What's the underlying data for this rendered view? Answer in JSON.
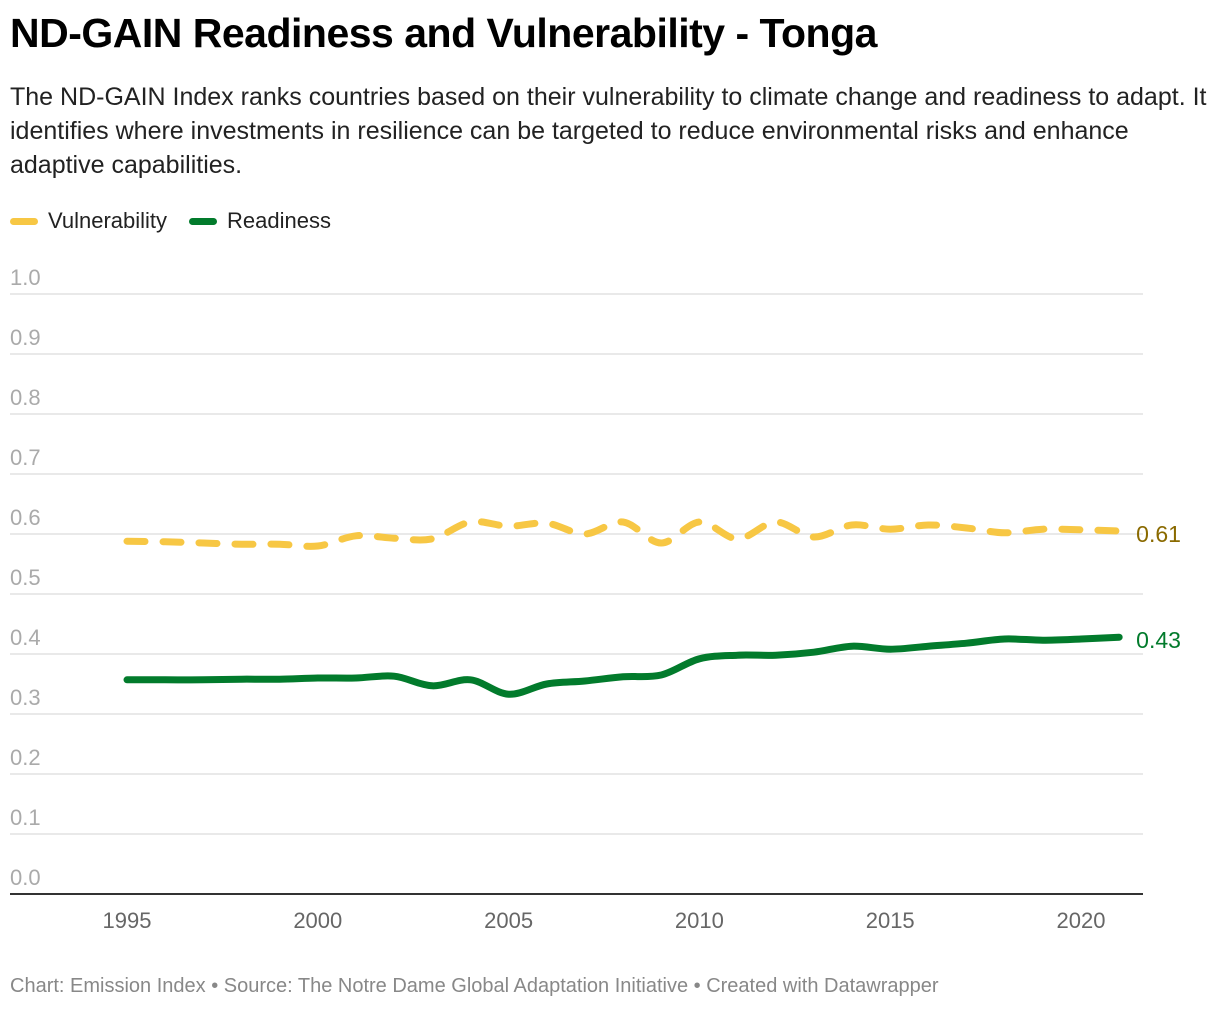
{
  "title": "ND-GAIN Readiness and Vulnerability - Tonga",
  "description": "The ND-GAIN Index ranks countries based on their vulnerability to climate change and readiness to adapt. It identifies where investments in resilience can be targeted to reduce environmental risks and enhance adaptive capabilities.",
  "footer": "Chart: Emission Index • Source: The Notre Dame Global Adaptation Initiative • Created with Datawrapper",
  "chart_data": {
    "type": "line",
    "x": [
      1995,
      1996,
      1997,
      1998,
      1999,
      2000,
      2001,
      2002,
      2003,
      2004,
      2005,
      2006,
      2007,
      2008,
      2009,
      2010,
      2011,
      2012,
      2013,
      2014,
      2015,
      2016,
      2017,
      2018,
      2019,
      2020,
      2021
    ],
    "series": [
      {
        "name": "Vulnerability",
        "color": "#f7c744",
        "dashed": true,
        "end_label": "0.61",
        "label_color": "#8a6a00",
        "values": [
          0.588,
          0.587,
          0.585,
          0.583,
          0.583,
          0.58,
          0.597,
          0.593,
          0.592,
          0.62,
          0.613,
          0.618,
          0.6,
          0.62,
          0.585,
          0.62,
          0.592,
          0.62,
          0.595,
          0.615,
          0.608,
          0.615,
          0.61,
          0.602,
          0.608,
          0.607,
          0.605
        ]
      },
      {
        "name": "Readiness",
        "color": "#027b2c",
        "dashed": false,
        "end_label": "0.43",
        "label_color": "#027b2c",
        "values": [
          0.357,
          0.357,
          0.357,
          0.358,
          0.358,
          0.36,
          0.36,
          0.363,
          0.347,
          0.357,
          0.333,
          0.35,
          0.355,
          0.362,
          0.365,
          0.392,
          0.398,
          0.398,
          0.403,
          0.413,
          0.408,
          0.413,
          0.418,
          0.425,
          0.423,
          0.425,
          0.428
        ]
      }
    ],
    "y_ticks": [
      "0.0",
      "0.1",
      "0.2",
      "0.3",
      "0.4",
      "0.5",
      "0.6",
      "0.7",
      "0.8",
      "0.9",
      "1.0"
    ],
    "x_ticks": [
      "1995",
      "2000",
      "2005",
      "2010",
      "2015",
      "2020"
    ],
    "ylim": [
      0,
      1
    ],
    "grid": true,
    "legend": "top-left"
  }
}
